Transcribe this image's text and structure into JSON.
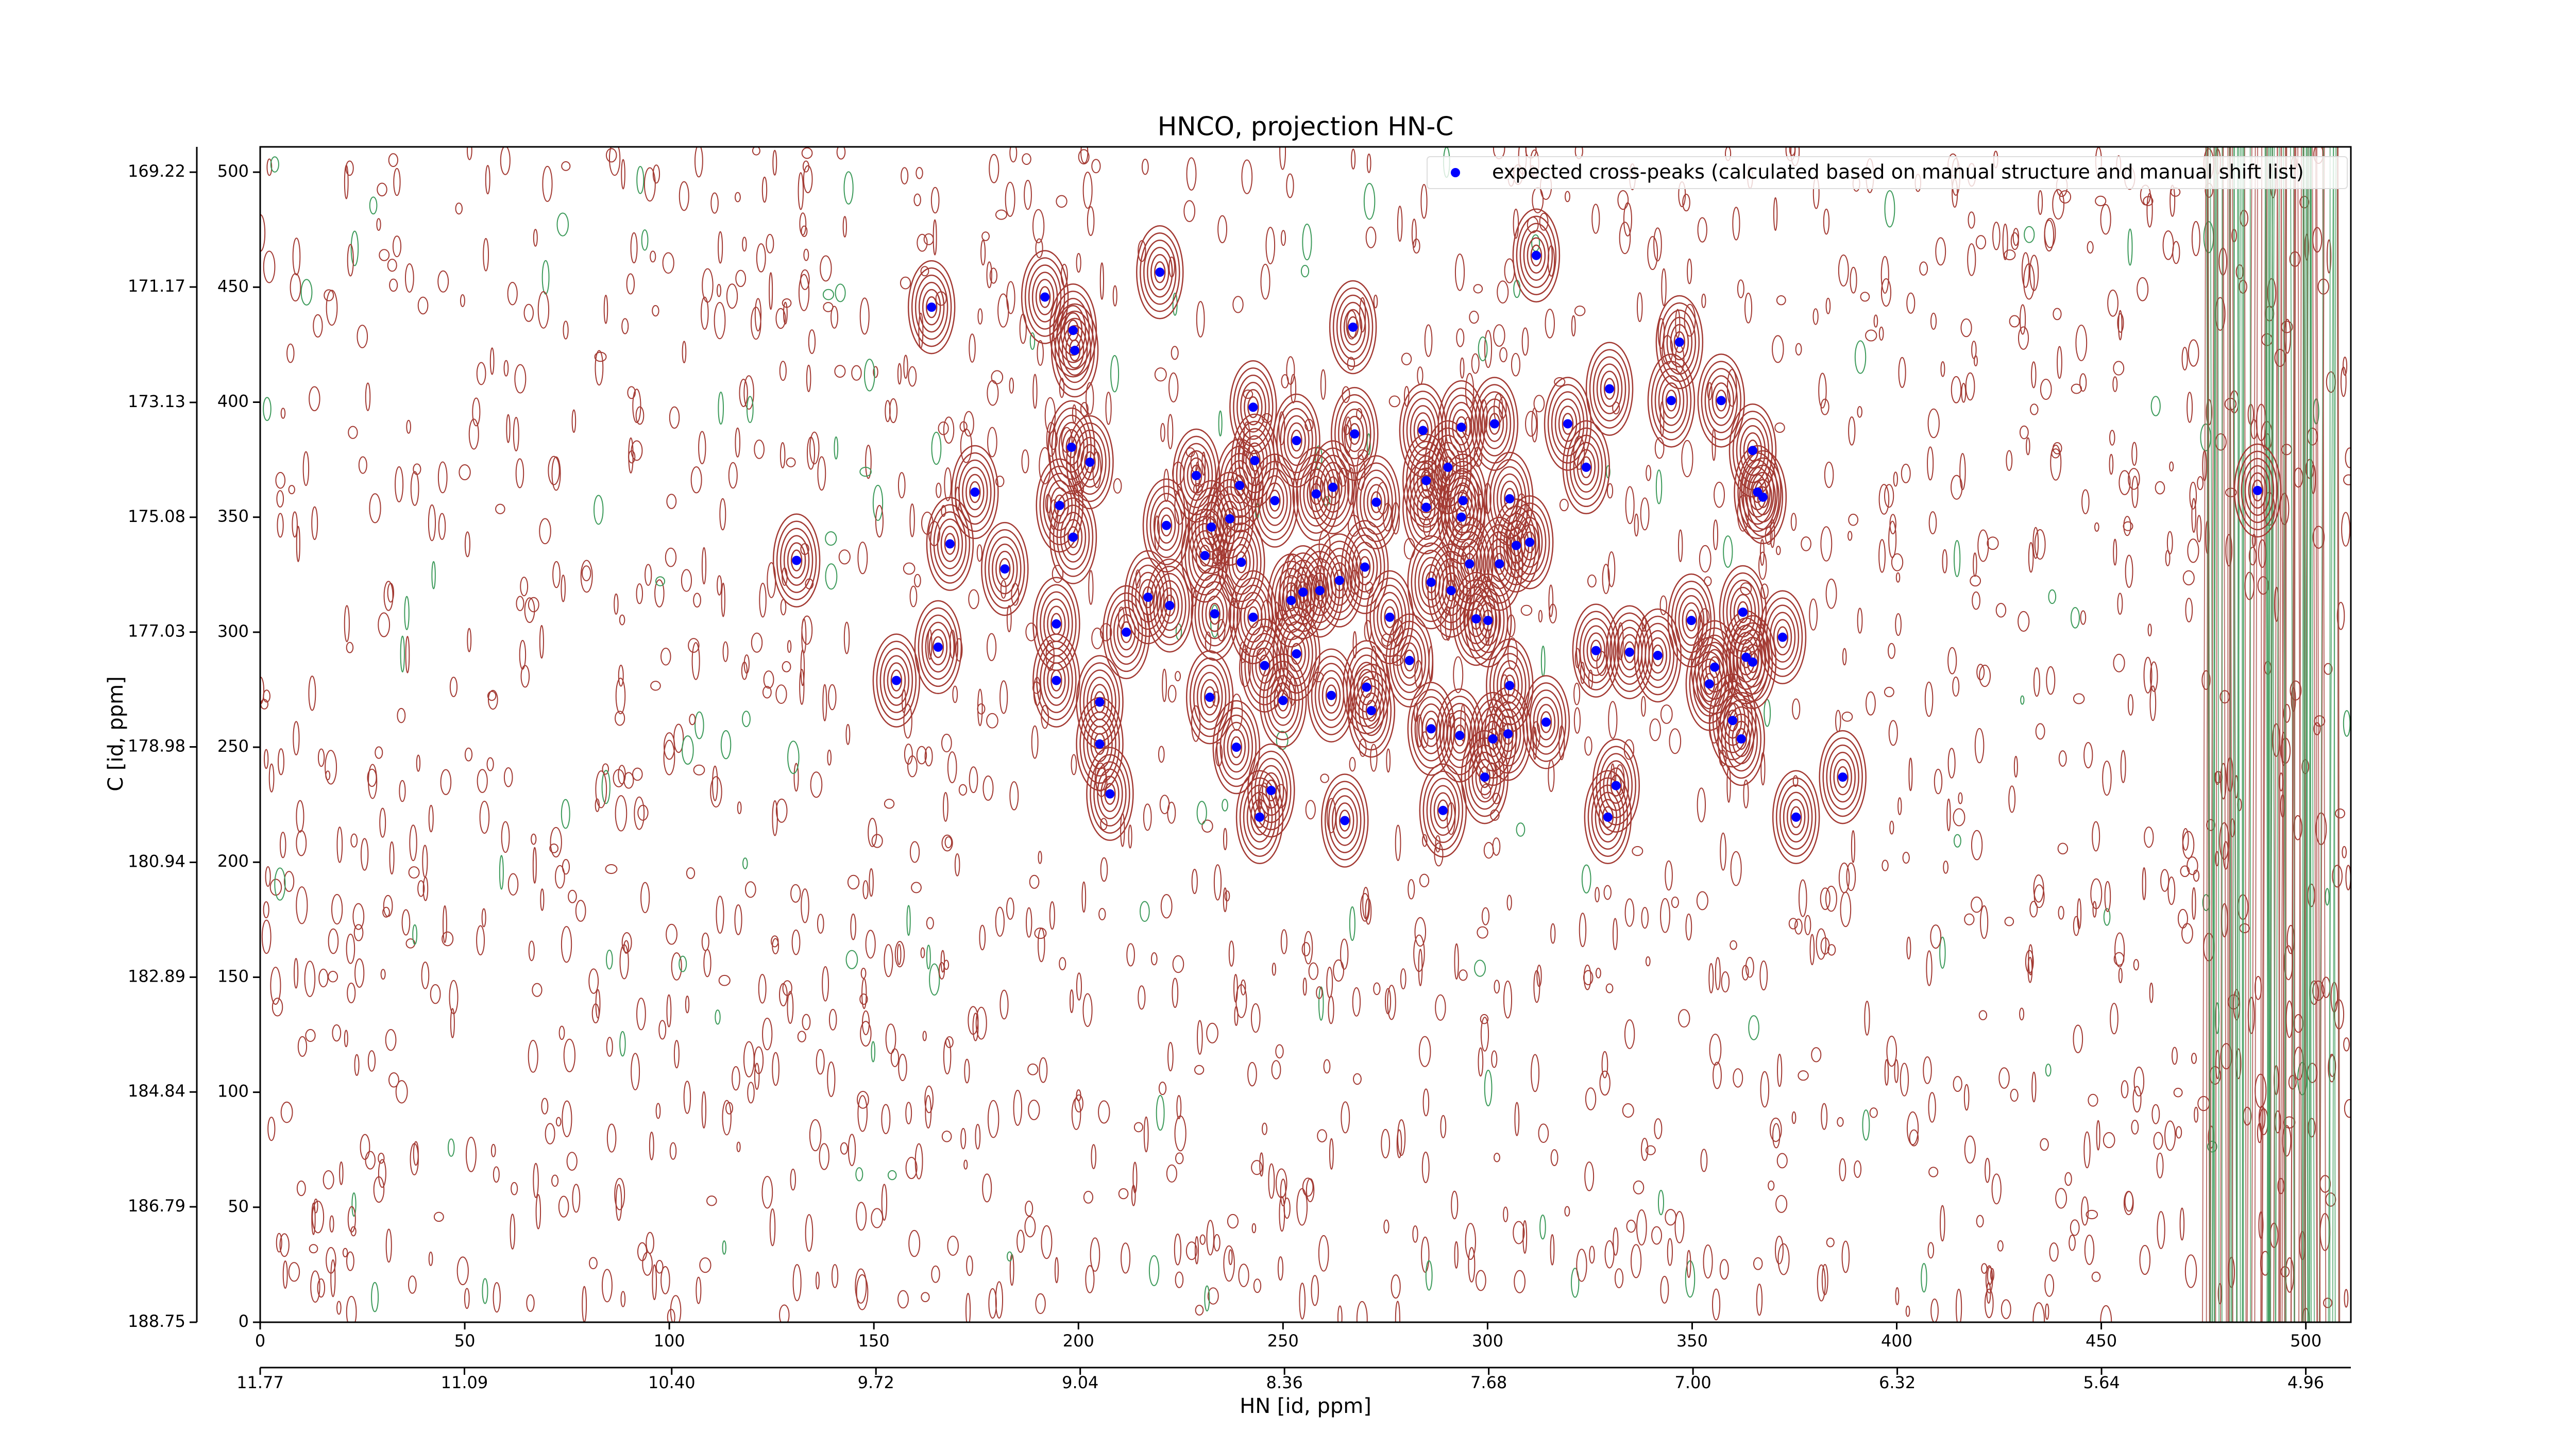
{
  "chart_data": {
    "type": "scatter",
    "title": "HNCO, projection HN-C",
    "xlabel": "HN [id, ppm]",
    "ylabel": "C [id, ppm]",
    "xlim": [
      0,
      511
    ],
    "ylim": [
      0,
      511
    ],
    "xticks": [
      0,
      50,
      100,
      150,
      200,
      250,
      300,
      350,
      400,
      450,
      500
    ],
    "yticks": [
      0,
      50,
      100,
      150,
      200,
      250,
      300,
      350,
      400,
      450,
      500
    ],
    "x2lim": [
      11.77,
      4.81
    ],
    "x2ticks": [
      11.77,
      11.09,
      {
        "value": 10.4,
        "label": "10.40"
      },
      9.72,
      9.04,
      8.36,
      7.68,
      {
        "value": 7.0,
        "label": "7.00"
      },
      6.32,
      5.64,
      4.96
    ],
    "y2lim": [
      188.75,
      168.79
    ],
    "y2ticks": [
      188.75,
      186.79,
      184.84,
      182.89,
      180.94,
      178.98,
      177.03,
      175.08,
      173.13,
      171.17,
      169.22
    ],
    "legend": "upper right",
    "positive_contour_color": "#a33a33",
    "negative_contour_color": "#3c9a5a",
    "series": [
      {
        "name": "expected cross-peaks (calculated based on manual structure and manual shift list)",
        "color": "#0000ff",
        "x": [
          131.1,
          155.5,
          164.1,
          168.6,
          165.7,
          174.7,
          182.0,
          191.8,
          194.6,
          194.6,
          195.4,
          198.7,
          199.1,
          198.3,
          198.7,
          202.8,
          205.2,
          205.2,
          207.7,
          211.7,
          217.0,
          219.9,
          221.5,
          222.3,
          228.8,
          230.9,
          232.5,
          232.1,
          233.3,
          237.0,
          239.4,
          239.8,
          238.6,
          242.7,
          243.1,
          242.7,
          244.3,
          245.5,
          247.1,
          248.0,
          250.0,
          252.0,
          253.3,
          253.3,
          254.9,
          258.1,
          259.0,
          262.2,
          261.8,
          263.8,
          265.1,
          267.1,
          267.5,
          270.0,
          270.4,
          271.6,
          272.8,
          276.1,
          280.9,
          284.2,
          285.0,
          285.0,
          286.2,
          286.2,
          289.1,
          290.3,
          291.1,
          293.2,
          293.6,
          293.6,
          294.0,
          295.6,
          297.2,
          299.3,
          300.1,
          301.7,
          301.3,
          302.9,
          305.4,
          305.4,
          305.0,
          307.0,
          310.3,
          311.9,
          314.3,
          319.6,
          324.1,
          326.5,
          329.8,
          329.4,
          331.4,
          334.7,
          341.6,
          344.9,
          346.9,
          349.8,
          354.2,
          355.5,
          357.1,
          359.9,
          362.0,
          362.4,
          363.2,
          364.8,
          364.8,
          366.0,
          367.3,
          372.1,
          375.4,
          386.8,
          488.2
        ],
        "values": [
          331.2,
          279.0,
          441.3,
          338.4,
          293.5,
          360.9,
          327.5,
          445.7,
          303.6,
          279.0,
          355.1,
          431.2,
          422.5,
          380.4,
          341.3,
          373.9,
          269.6,
          251.4,
          229.7,
          300.0,
          315.2,
          456.5,
          346.4,
          311.6,
          368.1,
          333.3,
          345.7,
          271.7,
          308.0,
          349.3,
          363.8,
          330.4,
          250.0,
          397.8,
          374.6,
          306.5,
          219.6,
          285.5,
          231.2,
          357.2,
          270.3,
          313.8,
          290.6,
          383.3,
          317.4,
          360.1,
          318.1,
          363.0,
          272.5,
          322.5,
          218.1,
          432.6,
          386.2,
          328.3,
          276.1,
          265.9,
          356.5,
          306.5,
          287.7,
          387.7,
          365.9,
          354.3,
          258.0,
          321.7,
          222.5,
          371.7,
          318.1,
          255.1,
          350.0,
          389.1,
          357.2,
          329.7,
          305.8,
          237.0,
          305.1,
          390.6,
          253.6,
          329.7,
          276.8,
          358.0,
          255.8,
          337.7,
          339.1,
          463.8,
          260.9,
          390.6,
          371.7,
          292.0,
          405.8,
          219.6,
          233.3,
          291.3,
          289.9,
          400.7,
          426.1,
          305.1,
          277.5,
          284.8,
          400.7,
          261.6,
          253.6,
          308.7,
          289.1,
          379.0,
          287.0,
          360.9,
          358.7,
          297.8,
          219.6,
          237.0,
          361.6
        ]
      }
    ]
  }
}
